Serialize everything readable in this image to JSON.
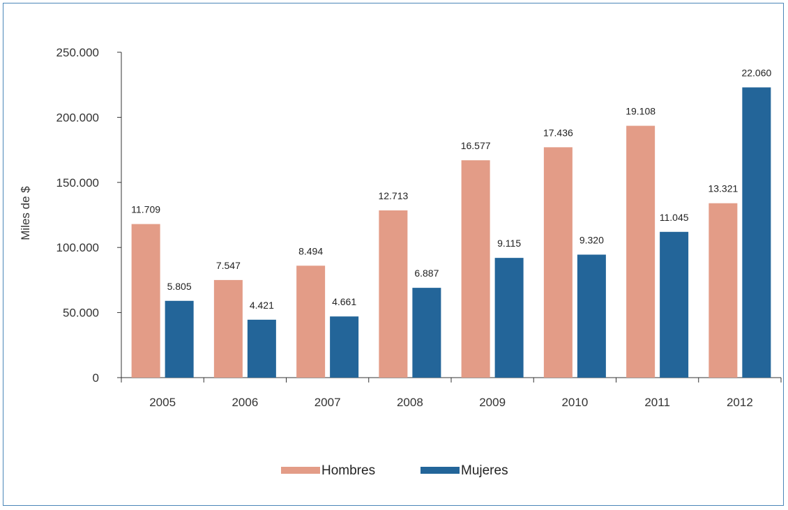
{
  "chart_data": {
    "type": "bar",
    "title": "",
    "xlabel": "",
    "ylabel": "Miles de $",
    "ylim": [
      0,
      250000
    ],
    "yticks": [
      0,
      50000,
      100000,
      150000,
      200000,
      250000
    ],
    "ytick_labels": [
      "0",
      "50.000",
      "100.000",
      "150.000",
      "200.000",
      "250.000"
    ],
    "grid": false,
    "legend_position": "bottom",
    "categories": [
      "2005",
      "2006",
      "2007",
      "2008",
      "2009",
      "2010",
      "2011",
      "2012"
    ],
    "series": [
      {
        "name": "Hombres",
        "color": "#e39c87",
        "values": [
          118000,
          75000,
          86000,
          128500,
          167000,
          177000,
          193500,
          134000
        ],
        "labels": [
          "11.709",
          "7.547",
          "8.494",
          "12.713",
          "16.577",
          "17.436",
          "19.108",
          "13.321"
        ]
      },
      {
        "name": "Mujeres",
        "color": "#236599",
        "values": [
          59000,
          44500,
          47000,
          69000,
          92000,
          94500,
          112000,
          223000
        ],
        "labels": [
          "5.805",
          "4.421",
          "4.661",
          "6.887",
          "9.115",
          "9.320",
          "11.045",
          "22.060"
        ]
      }
    ]
  }
}
